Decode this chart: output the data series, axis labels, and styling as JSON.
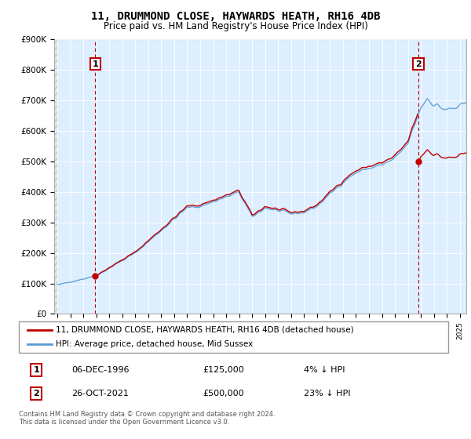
{
  "title": "11, DRUMMOND CLOSE, HAYWARDS HEATH, RH16 4DB",
  "subtitle": "Price paid vs. HM Land Registry's House Price Index (HPI)",
  "legend_line1": "11, DRUMMOND CLOSE, HAYWARDS HEATH, RH16 4DB (detached house)",
  "legend_line2": "HPI: Average price, detached house, Mid Sussex",
  "annotation1_date": "06-DEC-1996",
  "annotation1_price": "£125,000",
  "annotation1_hpi": "4% ↓ HPI",
  "annotation2_date": "26-OCT-2021",
  "annotation2_price": "£500,000",
  "annotation2_hpi": "23% ↓ HPI",
  "footnote": "Contains HM Land Registry data © Crown copyright and database right 2024.\nThis data is licensed under the Open Government Licence v3.0.",
  "hpi_color": "#5b9bd5",
  "price_color": "#c00000",
  "annotation_box_color": "#c00000",
  "dashed_line_color": "#c00000",
  "plot_bg_color": "#ddeeff",
  "ylim": [
    0,
    900000
  ],
  "xlim_start": 1993.75,
  "xlim_end": 2025.5,
  "purchase1_x": 1996.92,
  "purchase1_y": 125000,
  "purchase2_x": 2021.82,
  "purchase2_y": 500000,
  "hpi_at_purchase1": 130000,
  "hpi_at_purchase2": 645000
}
